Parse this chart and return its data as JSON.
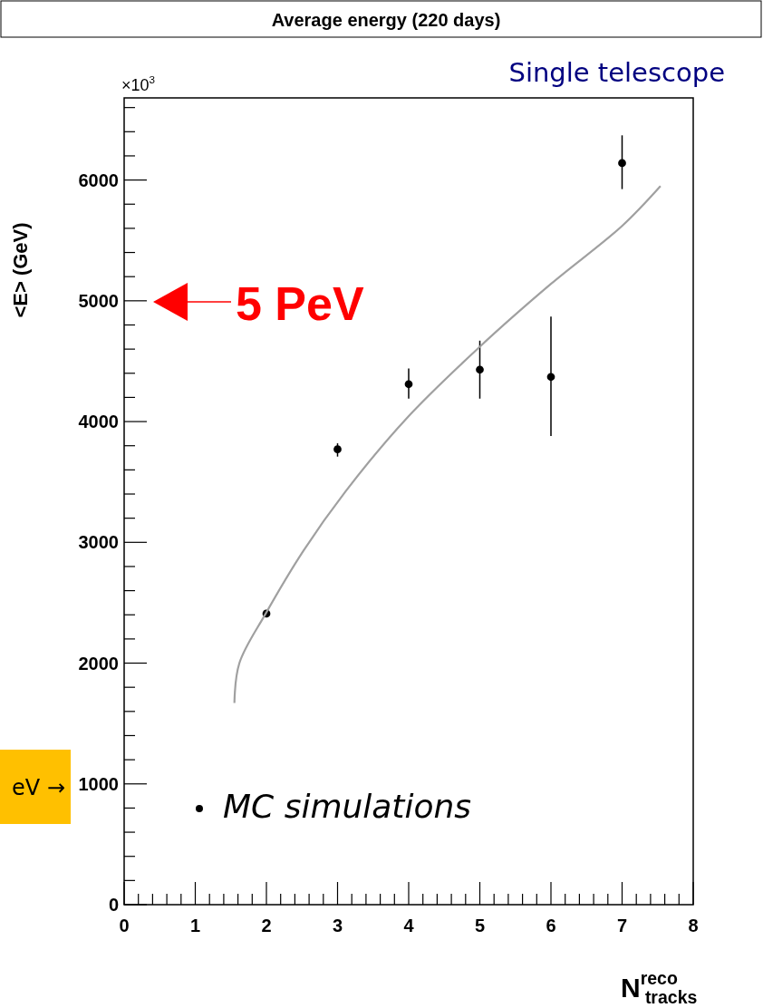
{
  "chart_data": {
    "type": "scatter",
    "title": "Average energy (220 days)",
    "subtitle": "Single telescope",
    "xlabel": "N$^{reco}$$_{tracks}$",
    "ylabel": "<E> (GeV)",
    "xlim": [
      0,
      8
    ],
    "xticks": [
      0,
      1,
      2,
      3,
      4,
      5,
      6,
      7,
      8
    ],
    "ylim": [
      0,
      6680
    ],
    "yticks": [
      0,
      1000,
      2000,
      3000,
      4000,
      5000,
      6000
    ],
    "marker": "circle",
    "legend": "bottom",
    "series": [
      {
        "name": "MC simulations",
        "color": "#000000",
        "x": [
          2,
          3,
          4,
          5,
          6,
          7
        ],
        "values": [
          2410,
          3770,
          4310,
          4430,
          4370,
          6140
        ],
        "errors": [
          null,
          [
            3710,
            3820
          ],
          [
            4190,
            4440
          ],
          [
            4190,
            4670
          ],
          [
            3880,
            4870
          ],
          [
            5925,
            6370
          ]
        ]
      },
      {
        "type": "line",
        "color": "#a0a0a0",
        "marker": "none",
        "x": [
          1.55,
          1.62,
          1.99,
          2.52,
          3.11,
          3.96,
          5,
          6,
          7,
          7.54
        ],
        "values": [
          1670,
          2000,
          2410,
          2930,
          3420,
          4020,
          4620,
          5140,
          5620,
          5950
        ]
      }
    ],
    "annotations": [
      "×10$^{3}$",
      "5 PeV",
      "eV →"
    ]
  }
}
